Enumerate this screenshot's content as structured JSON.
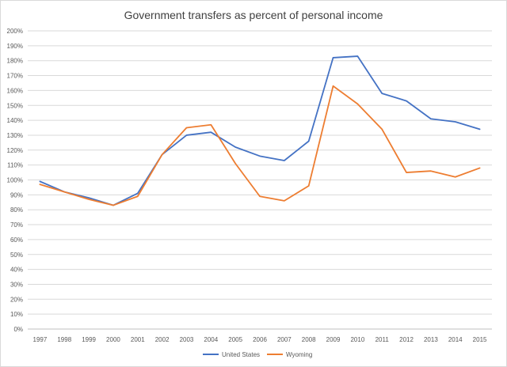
{
  "chart_data": {
    "type": "line",
    "title": "Government transfers as percent of personal income",
    "xlabel": "",
    "ylabel": "",
    "x": [
      "1997",
      "1998",
      "1999",
      "2000",
      "2001",
      "2002",
      "2003",
      "2004",
      "2005",
      "2006",
      "2007",
      "2008",
      "2009",
      "2010",
      "2011",
      "2012",
      "2013",
      "2014",
      "2015"
    ],
    "ylim": [
      0,
      200
    ],
    "y_ticks": [
      "0%",
      "10%",
      "20%",
      "30%",
      "40%",
      "50%",
      "60%",
      "70%",
      "80%",
      "90%",
      "100%",
      "110%",
      "120%",
      "130%",
      "140%",
      "150%",
      "160%",
      "170%",
      "180%",
      "190%",
      "200%"
    ],
    "grid": true,
    "legend_position": "bottom",
    "series": [
      {
        "name": "United States",
        "color": "#4472C4",
        "values": [
          99,
          92,
          88,
          83,
          91,
          117,
          130,
          132,
          122,
          116,
          113,
          126,
          182,
          183,
          158,
          153,
          141,
          139,
          134
        ]
      },
      {
        "name": "Wyoming",
        "color": "#ED7D31",
        "values": [
          97,
          92,
          87,
          83,
          89,
          117,
          135,
          137,
          111,
          89,
          86,
          96,
          163,
          151,
          134,
          105,
          106,
          102,
          108
        ]
      }
    ]
  }
}
